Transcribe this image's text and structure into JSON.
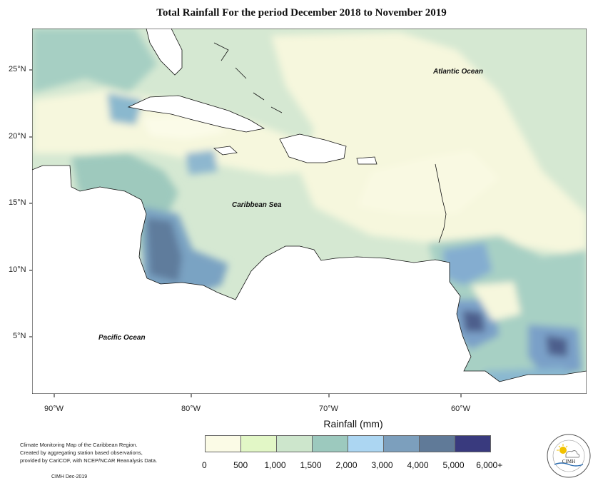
{
  "title": "Total Rainfall For the period December 2018 to November 2019",
  "labels": {
    "atlantic": "Atlantic Ocean",
    "caribbean": "Caribbean Sea",
    "pacific": "Pacific Ocean"
  },
  "lat_ticks": [
    "25°N",
    "20°N",
    "15°N",
    "10°N",
    "5°N"
  ],
  "lon_ticks": [
    "90°W",
    "80°W",
    "70°W",
    "60°W"
  ],
  "legend": {
    "title": "Rainfall (mm)",
    "ticks": [
      "0",
      "500",
      "1,000",
      "1,500",
      "2,000",
      "3,000",
      "4,000",
      "5,000",
      "6,000+"
    ],
    "colors": [
      "#fbfbe6",
      "#e2f7c6",
      "#cde6cc",
      "#9cc9be",
      "#acd6f2",
      "#7c9fbd",
      "#607a98",
      "#393a7e"
    ]
  },
  "credits": {
    "line1": "Climate Monitoring Map of the Caribbean Region.",
    "line2": "Created by aggregating station based observations,",
    "line3": "provided by CariCOF, with NCEP/NCAR Reanalysis Data.",
    "date": "CIMH Dec-2019"
  },
  "logo": {
    "text": "CIMH",
    "icon": "cimh-logo-icon"
  }
}
